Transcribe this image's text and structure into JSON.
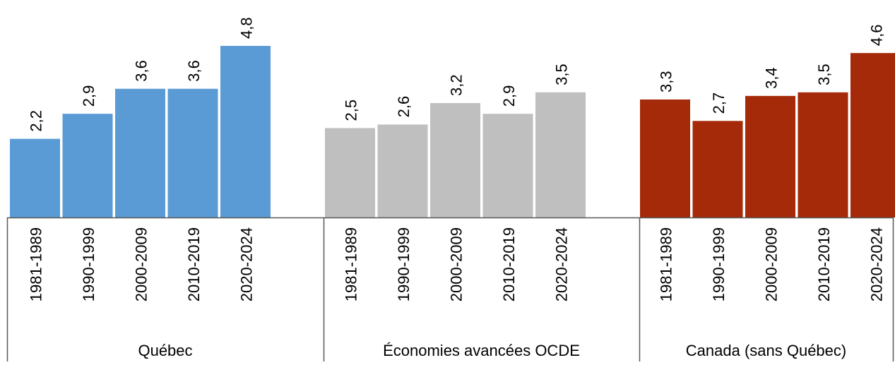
{
  "chart_data": {
    "type": "bar",
    "groups": [
      {
        "label": "Québec",
        "color": "#5B9BD5",
        "categories": [
          "1981-1989",
          "1990-1999",
          "2000-2009",
          "2010-2019",
          "2020-2024"
        ],
        "values": [
          2.2,
          2.9,
          3.6,
          3.6,
          4.8
        ],
        "value_labels": [
          "2,2",
          "2,9",
          "3,6",
          "3,6",
          "4,8"
        ]
      },
      {
        "label": "Économies avancées OCDE",
        "color": "#BFBFBF",
        "categories": [
          "1981-1989",
          "1990-1999",
          "2000-2009",
          "2010-2019",
          "2020-2024"
        ],
        "values": [
          2.5,
          2.6,
          3.2,
          2.9,
          3.5
        ],
        "value_labels": [
          "2,5",
          "2,6",
          "3,2",
          "2,9",
          "3,5"
        ]
      },
      {
        "label": "Canada (sans Québec)",
        "color": "#A52A0A",
        "categories": [
          "1981-1989",
          "1990-1999",
          "2000-2009",
          "2010-2019",
          "2020-2024"
        ],
        "values": [
          3.3,
          2.7,
          3.4,
          3.5,
          4.6
        ],
        "value_labels": [
          "3,3",
          "2,7",
          "3,4",
          "3,5",
          "4,6"
        ]
      }
    ],
    "ylim": [
      0,
      4.8
    ],
    "grid": false,
    "legend": "none",
    "title": "",
    "xlabel": "",
    "ylabel": ""
  }
}
